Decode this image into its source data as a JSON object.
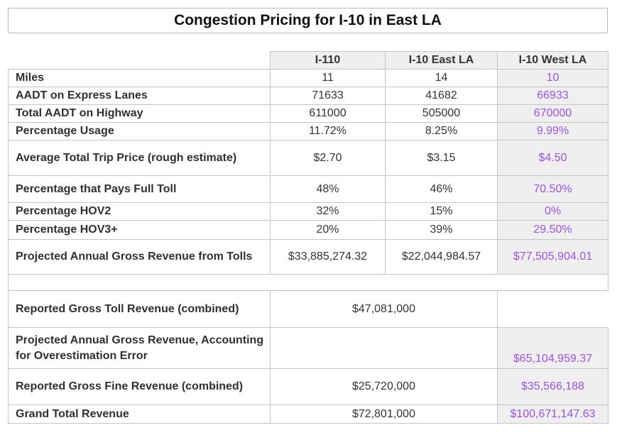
{
  "title": "Congestion Pricing for I-10 in East LA",
  "columns": [
    "I-110",
    "I-10 East LA",
    "I-10 West LA"
  ],
  "rows": [
    {
      "label": "Miles",
      "values": [
        "11",
        "14",
        "10"
      ]
    },
    {
      "label": "AADT on Express Lanes",
      "values": [
        "71633",
        "41682",
        "66933"
      ]
    },
    {
      "label": "Total AADT on Highway",
      "values": [
        "611000",
        "505000",
        "670000"
      ]
    },
    {
      "label": "Percentage Usage",
      "values": [
        "11.72%",
        "8.25%",
        "9.99%"
      ]
    },
    {
      "label": "Average Total Trip Price (rough estimate)",
      "values": [
        "$2.70",
        "$3.15",
        "$4.50"
      ]
    },
    {
      "label": "Percentage that Pays Full Toll",
      "values": [
        "48%",
        "46%",
        "70.50%"
      ]
    },
    {
      "label": "Percentage HOV2",
      "values": [
        "32%",
        "15%",
        "0%"
      ]
    },
    {
      "label": "Percentage HOV3+",
      "values": [
        "20%",
        "39%",
        "29.50%"
      ]
    },
    {
      "label": "Projected Annual Gross Revenue from Tolls",
      "values": [
        "$33,885,274.32",
        "$22,044,984.57",
        "$77,505,904.01"
      ]
    }
  ],
  "summary": [
    {
      "label": "Reported Gross Toll Revenue (combined)",
      "combined": "$47,081,000",
      "west": ""
    },
    {
      "label": "Projected Annual Gross Revenue, Accounting for Overestimation Error",
      "combined": "",
      "west": "$65,104,959.37"
    },
    {
      "label": "Reported Gross Fine Revenue (combined)",
      "combined": "$25,720,000",
      "west": "$35,566,188"
    },
    {
      "label": "Grand Total Revenue",
      "combined": "$72,801,000",
      "west": "$100,671,147.63"
    }
  ],
  "colors": {
    "accent_purple": "#9a52e8",
    "header_gray": "#efefef",
    "border": "#c4c4c4"
  }
}
